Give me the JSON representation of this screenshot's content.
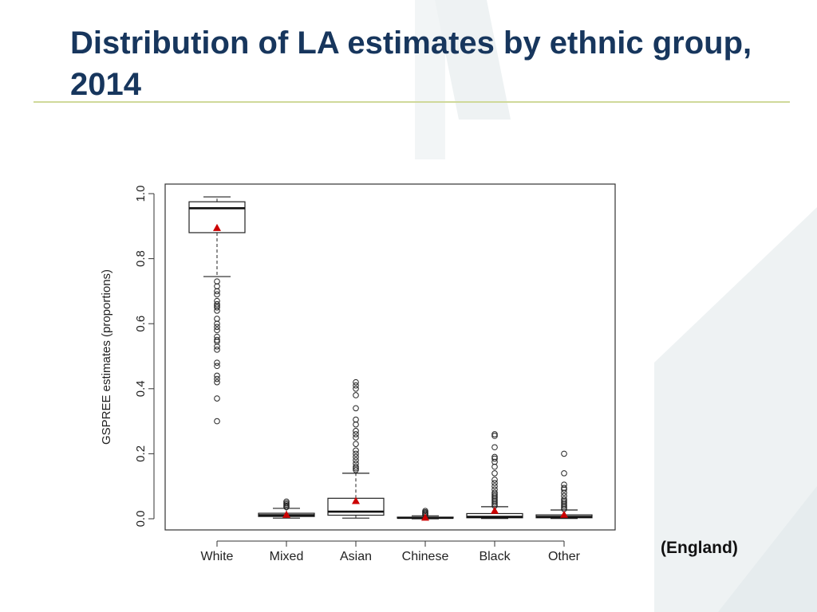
{
  "slide": {
    "title": "Distribution of LA estimates by ethnic group, 2014",
    "note": "(England)"
  },
  "colors": {
    "title": "#17365d",
    "rule": "#cfd99a",
    "background_shape": "#eef2f3",
    "mean_marker": "#cc0000"
  },
  "chart_data": {
    "type": "box",
    "ylabel": "GSPREE estimates (proportions)",
    "ylim": [
      0.0,
      1.0
    ],
    "yticks": [
      "0.0",
      "0.2",
      "0.4",
      "0.6",
      "0.8",
      "1.0"
    ],
    "categories": [
      "White",
      "Mixed",
      "Asian",
      "Chinese",
      "Black",
      "Other"
    ],
    "grid": false,
    "mean_marker": "red triangle",
    "boxes": [
      {
        "name": "White",
        "min": 0.745,
        "q1": 0.88,
        "median": 0.955,
        "q3": 0.975,
        "max": 0.99,
        "mean": 0.895,
        "outliers": [
          0.73,
          0.715,
          0.7,
          0.69,
          0.67,
          0.66,
          0.655,
          0.65,
          0.64,
          0.615,
          0.6,
          0.59,
          0.58,
          0.56,
          0.55,
          0.545,
          0.53,
          0.52,
          0.48,
          0.47,
          0.44,
          0.43,
          0.42,
          0.37,
          0.3
        ]
      },
      {
        "name": "Mixed",
        "min": 0.002,
        "q1": 0.007,
        "median": 0.011,
        "q3": 0.017,
        "max": 0.032,
        "mean": 0.013,
        "outliers": [
          0.036,
          0.04,
          0.044,
          0.048,
          0.053
        ]
      },
      {
        "name": "Asian",
        "min": 0.002,
        "q1": 0.011,
        "median": 0.022,
        "q3": 0.063,
        "max": 0.14,
        "mean": 0.055,
        "outliers": [
          0.15,
          0.155,
          0.16,
          0.17,
          0.18,
          0.19,
          0.2,
          0.21,
          0.23,
          0.25,
          0.26,
          0.27,
          0.29,
          0.305,
          0.34,
          0.38,
          0.4,
          0.41,
          0.42
        ]
      },
      {
        "name": "Chinese",
        "min": 0.0,
        "q1": 0.002,
        "median": 0.003,
        "q3": 0.005,
        "max": 0.009,
        "mean": 0.004,
        "outliers": [
          0.011,
          0.014,
          0.017,
          0.02,
          0.024
        ]
      },
      {
        "name": "Black",
        "min": 0.001,
        "q1": 0.003,
        "median": 0.006,
        "q3": 0.016,
        "max": 0.037,
        "mean": 0.025,
        "outliers": [
          0.04,
          0.045,
          0.05,
          0.055,
          0.06,
          0.065,
          0.07,
          0.075,
          0.08,
          0.09,
          0.1,
          0.11,
          0.12,
          0.14,
          0.16,
          0.175,
          0.185,
          0.19,
          0.22,
          0.255,
          0.26
        ]
      },
      {
        "name": "Other",
        "min": 0.001,
        "q1": 0.003,
        "median": 0.006,
        "q3": 0.012,
        "max": 0.027,
        "mean": 0.013,
        "outliers": [
          0.03,
          0.035,
          0.04,
          0.045,
          0.05,
          0.055,
          0.06,
          0.07,
          0.08,
          0.09,
          0.095,
          0.105,
          0.14,
          0.2
        ]
      }
    ]
  }
}
